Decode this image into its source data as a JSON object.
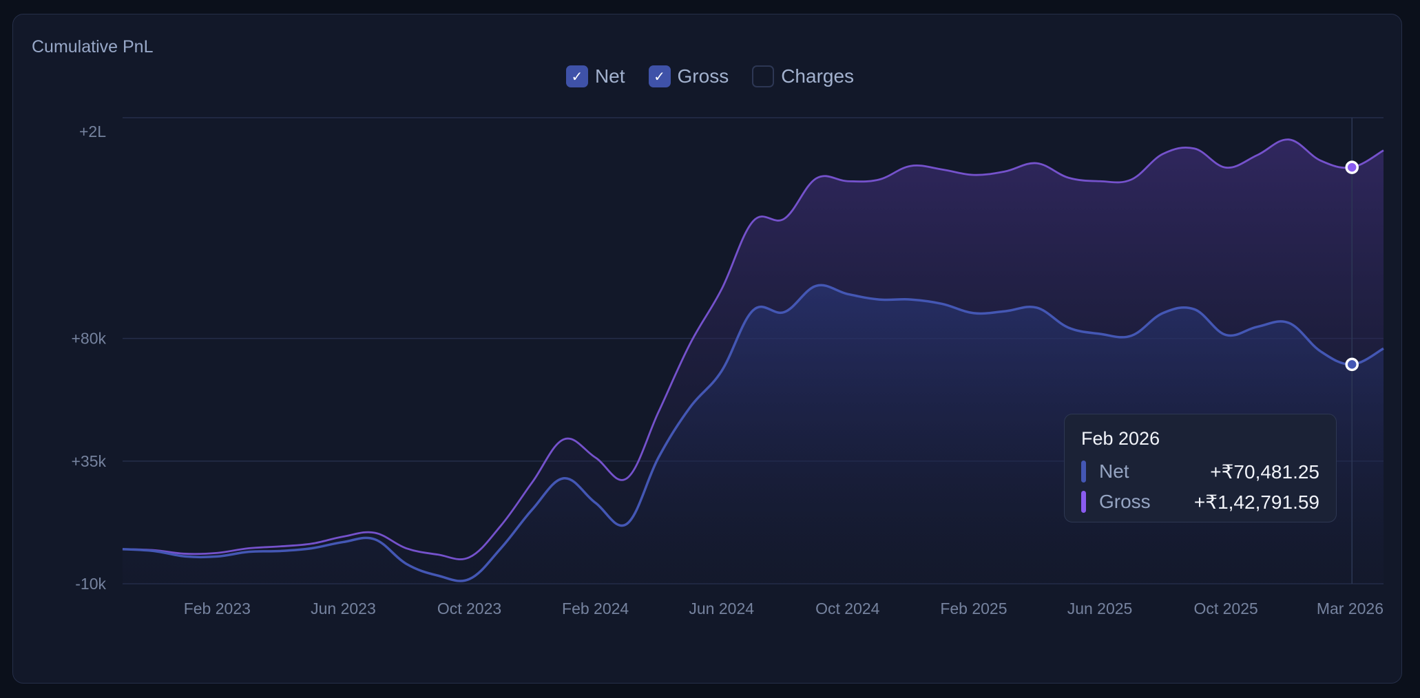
{
  "card": {
    "title": "Cumulative PnL"
  },
  "legend": [
    {
      "label": "Net",
      "checked": true,
      "color": "#4457b4"
    },
    {
      "label": "Gross",
      "checked": true,
      "color": "#7552cc"
    },
    {
      "label": "Charges",
      "checked": false
    }
  ],
  "tooltip": {
    "title": "Feb 2026",
    "rows": [
      {
        "label": "Net",
        "value": "+₹70,481.25",
        "color": "#4457b4"
      },
      {
        "label": "Gross",
        "value": "+₹1,42,791.59",
        "color": "#8a5cf0"
      }
    ]
  },
  "chart_data": {
    "type": "area",
    "title": "Cumulative PnL",
    "x": [
      "Nov 2022",
      "Dec 2022",
      "Jan 2023",
      "Feb 2023",
      "Mar 2023",
      "Apr 2023",
      "May 2023",
      "Jun 2023",
      "Jul 2023",
      "Aug 2023",
      "Sep 2023",
      "Oct 2023",
      "Nov 2023",
      "Dec 2023",
      "Jan 2024",
      "Feb 2024",
      "Mar 2024",
      "Apr 2024",
      "May 2024",
      "Jun 2024",
      "Jul 2024",
      "Aug 2024",
      "Sep 2024",
      "Oct 2024",
      "Nov 2024",
      "Dec 2024",
      "Jan 2025",
      "Feb 2025",
      "Mar 2025",
      "Apr 2025",
      "May 2025",
      "Jun 2025",
      "Jul 2025",
      "Aug 2025",
      "Sep 2025",
      "Oct 2025",
      "Nov 2025",
      "Dec 2025",
      "Jan 2026",
      "Feb 2026",
      "Mar 2026"
    ],
    "series": [
      {
        "name": "Net",
        "color": "#4457b4",
        "values": [
          2700,
          2000,
          0,
          0,
          1700,
          2000,
          3000,
          5300,
          6300,
          -2700,
          -7000,
          -8300,
          3000,
          17300,
          28700,
          19700,
          12000,
          36300,
          54700,
          68000,
          90300,
          89700,
          99300,
          96300,
          94300,
          94300,
          92700,
          89300,
          90000,
          91300,
          84000,
          81700,
          81000,
          89300,
          90700,
          81300,
          84300,
          85700,
          75300,
          70481.25,
          76300
        ]
      },
      {
        "name": "Gross",
        "color": "#7552cc",
        "values": [
          2700,
          2300,
          1000,
          1300,
          3000,
          3700,
          4700,
          7300,
          8700,
          3000,
          700,
          -300,
          11300,
          27300,
          43000,
          36300,
          28700,
          53000,
          78000,
          98000,
          123000,
          124000,
          138700,
          137700,
          138300,
          143300,
          142000,
          140000,
          141300,
          144300,
          139000,
          137700,
          138300,
          147700,
          149700,
          142700,
          147300,
          153000,
          145300,
          142791.59,
          149000
        ]
      }
    ],
    "x_tick_labels": [
      "Feb 2023",
      "Jun 2023",
      "Oct 2023",
      "Feb 2024",
      "Jun 2024",
      "Oct 2024",
      "Feb 2025",
      "Jun 2025",
      "Oct 2025",
      "Mar 2026"
    ],
    "y_ticks": [
      {
        "label": "-10k",
        "value": -10000
      },
      {
        "label": "+35k",
        "value": 35000
      },
      {
        "label": "+80k",
        "value": 80000
      }
    ],
    "y_max_label": "+2L",
    "ylim": [
      -10000,
      161000
    ],
    "grid": true,
    "legend_position": "top-center",
    "highlighted_x": "Feb 2026"
  }
}
